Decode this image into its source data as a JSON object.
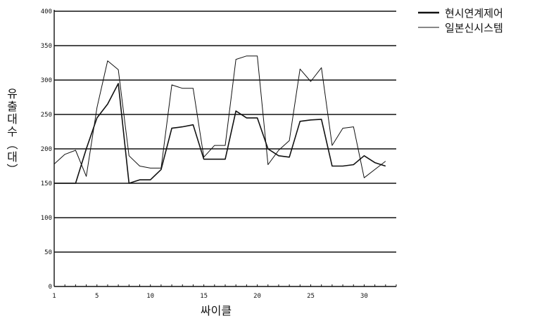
{
  "chart_data": {
    "type": "line",
    "xlabel": "싸이클",
    "ylabel": "유출대수（대）",
    "xlim": [
      1,
      33
    ],
    "ylim": [
      0,
      400
    ],
    "x_ticks": [
      1,
      5,
      10,
      15,
      20,
      25,
      30
    ],
    "y_ticks": [
      0,
      50,
      100,
      150,
      200,
      250,
      300,
      350,
      400
    ],
    "grid": true,
    "legend_position": "top-right",
    "series": [
      {
        "name": "현시연계제어",
        "color": "#111111",
        "values": [
          [
            1,
            150
          ],
          [
            2,
            150
          ],
          [
            3,
            150
          ],
          [
            4,
            200
          ],
          [
            5,
            245
          ],
          [
            6,
            265
          ],
          [
            7,
            295
          ],
          [
            8,
            150
          ],
          [
            9,
            155
          ],
          [
            10,
            155
          ],
          [
            11,
            170
          ],
          [
            12,
            230
          ],
          [
            13,
            232
          ],
          [
            14,
            235
          ],
          [
            15,
            185
          ],
          [
            16,
            185
          ],
          [
            17,
            185
          ],
          [
            18,
            255
          ],
          [
            19,
            245
          ],
          [
            20,
            245
          ],
          [
            21,
            200
          ],
          [
            22,
            190
          ],
          [
            23,
            188
          ],
          [
            24,
            240
          ],
          [
            25,
            242
          ],
          [
            26,
            243
          ],
          [
            27,
            175
          ],
          [
            28,
            175
          ],
          [
            29,
            177
          ],
          [
            30,
            190
          ],
          [
            31,
            180
          ],
          [
            32,
            175
          ]
        ]
      },
      {
        "name": "일본신시스템",
        "color": "#111111",
        "values": [
          [
            1,
            178
          ],
          [
            2,
            192
          ],
          [
            3,
            198
          ],
          [
            4,
            160
          ],
          [
            5,
            260
          ],
          [
            6,
            328
          ],
          [
            7,
            315
          ],
          [
            8,
            190
          ],
          [
            9,
            175
          ],
          [
            10,
            172
          ],
          [
            11,
            172
          ],
          [
            12,
            293
          ],
          [
            13,
            288
          ],
          [
            14,
            288
          ],
          [
            15,
            188
          ],
          [
            16,
            205
          ],
          [
            17,
            205
          ],
          [
            18,
            330
          ],
          [
            19,
            335
          ],
          [
            20,
            335
          ],
          [
            21,
            177
          ],
          [
            22,
            198
          ],
          [
            23,
            212
          ],
          [
            24,
            316
          ],
          [
            25,
            298
          ],
          [
            26,
            318
          ],
          [
            27,
            205
          ],
          [
            28,
            230
          ],
          [
            29,
            232
          ],
          [
            30,
            158
          ],
          [
            31,
            170
          ],
          [
            32,
            182
          ]
        ]
      }
    ]
  }
}
